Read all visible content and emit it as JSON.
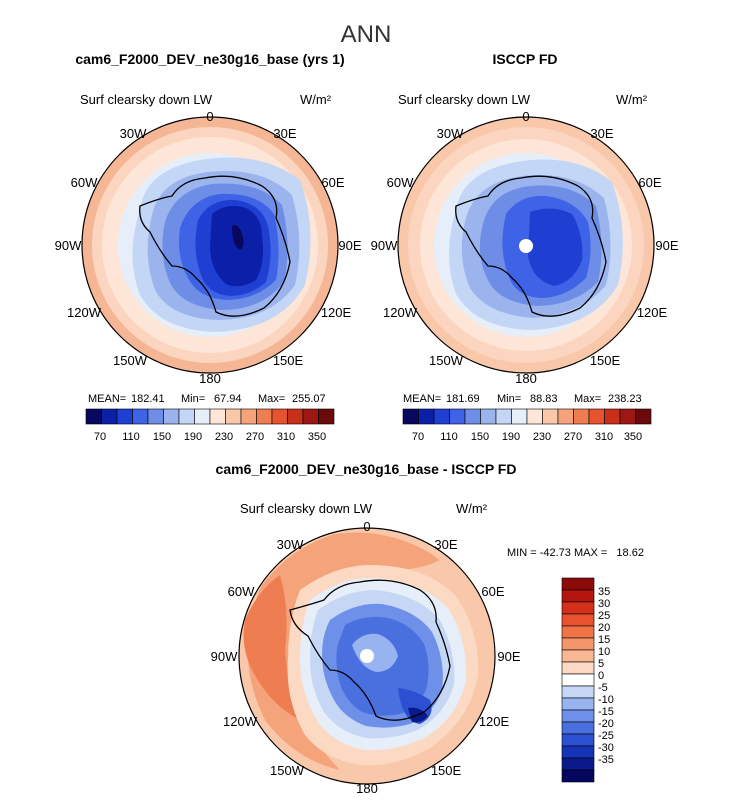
{
  "chart_data": [
    {
      "type": "polar_contour",
      "title": "cam6_F2000_DEV_ne30g16_base (yrs 1)",
      "figure_title": "ANN",
      "variable": "Surf clearsky down LW",
      "units": "W/m²",
      "longitude_labels": [
        "0",
        "30E",
        "60E",
        "90E",
        "120E",
        "150E",
        "180",
        "150W",
        "120W",
        "90W",
        "60W",
        "30W"
      ],
      "stats": [
        {
          "label": "MEAN=",
          "value": "182.41"
        },
        {
          "label": "Min=",
          "value": "67.94"
        },
        {
          "label": "Max=",
          "value": "255.07"
        }
      ],
      "stat_values": {
        "mean": 182.41,
        "min": 67.94,
        "max": 255.07
      },
      "colorbar": {
        "labels": [
          "70",
          "110",
          "150",
          "190",
          "230",
          "270",
          "310",
          "350"
        ],
        "levels": [
          70,
          90,
          110,
          130,
          150,
          170,
          190,
          210,
          230,
          250,
          270,
          290,
          310,
          330,
          350
        ],
        "colors": [
          "#08085e",
          "#0b1fa8",
          "#1f3fd2",
          "#3e63e6",
          "#6e8de6",
          "#9bb4ee",
          "#c4d6f5",
          "#e6eefa",
          "#fde6d8",
          "#f9c7a9",
          "#f4a37b",
          "#ee7d52",
          "#e5532f",
          "#c8301c",
          "#9d1714",
          "#6b0a0a"
        ]
      }
    },
    {
      "type": "polar_contour",
      "title": "ISCCP FD",
      "variable": "Surf clearsky down LW",
      "units": "W/m²",
      "longitude_labels": [
        "0",
        "30E",
        "60E",
        "90E",
        "120E",
        "150E",
        "180",
        "150W",
        "120W",
        "90W",
        "60W",
        "30W"
      ],
      "stats": [
        {
          "label": "MEAN=",
          "value": "181.69"
        },
        {
          "label": "Min=",
          "value": "88.83"
        },
        {
          "label": "Max=",
          "value": "238.23"
        }
      ],
      "stat_values": {
        "mean": 181.69,
        "min": 88.83,
        "max": 238.23
      },
      "colorbar": {
        "labels": [
          "70",
          "110",
          "150",
          "190",
          "230",
          "270",
          "310",
          "350"
        ],
        "levels": [
          70,
          90,
          110,
          130,
          150,
          170,
          190,
          210,
          230,
          250,
          270,
          290,
          310,
          330,
          350
        ]
      }
    },
    {
      "type": "polar_contour",
      "title": "cam6_F2000_DEV_ne30g16_base - ISCCP FD",
      "variable": "Surf clearsky down LW",
      "units": "W/m²",
      "longitude_labels": [
        "0",
        "30E",
        "60E",
        "90E",
        "120E",
        "150E",
        "180",
        "150W",
        "120W",
        "90W",
        "60W",
        "30W"
      ],
      "minmax_text": "MIN = -42.73 MAX =   18.62",
      "stat_values": {
        "min": -42.73,
        "max": 18.62
      },
      "colorbar": {
        "labels": [
          "35",
          "30",
          "25",
          "20",
          "15",
          "10",
          "5",
          "0",
          "-5",
          "-10",
          "-15",
          "-20",
          "-25",
          "-30",
          "-35"
        ],
        "colors_top_to_bottom": [
          "#8c0a0a",
          "#b5150f",
          "#d4301a",
          "#e8522d",
          "#f07345",
          "#f5966a",
          "#f9b793",
          "#fcd9c2",
          "#ffffff",
          "#c6d7f6",
          "#98b4f0",
          "#6e90e8",
          "#4a6fdf",
          "#2d50d2",
          "#1534b8",
          "#0a1a8c",
          "#05075e"
        ]
      }
    }
  ],
  "style": {
    "red_accent": "#c8301c",
    "blue_accent": "#1f3fd2"
  }
}
